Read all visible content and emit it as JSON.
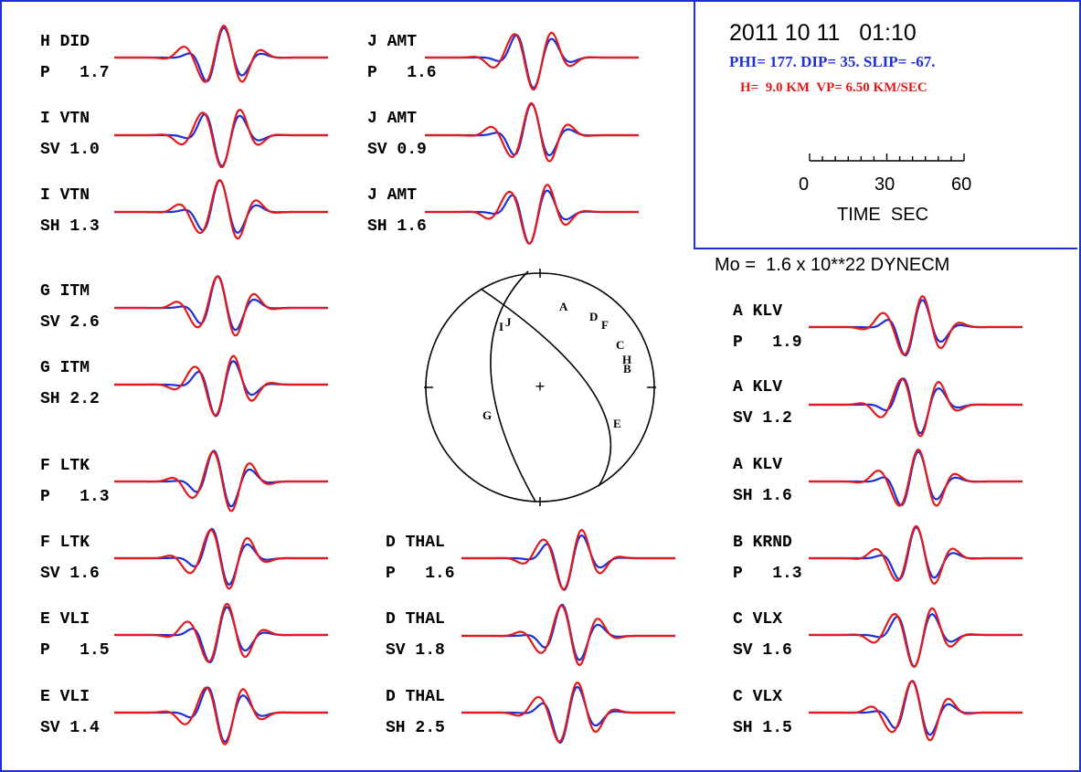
{
  "header": {
    "datetime": "2011 10 11   01:10",
    "mechanism": "PHI= 177. DIP= 35. SLIP= -67.",
    "depth_velocity": "H=  9.0 KM  VP= 6.50 KM/SEC",
    "scale_ticks": [
      "0",
      "30",
      "60"
    ],
    "scale_unit": "TIME  SEC",
    "moment": "Mo =  1.6 x 10**22 DYNECM"
  },
  "colors": {
    "observed": "#1f2fd8",
    "synthetic": "#e11b1b",
    "frame": "#1f2fd8",
    "text": "#000000"
  },
  "stations": [
    {
      "name": "H DID",
      "comp": "P   1.7",
      "amp": 1.7
    },
    {
      "name": "I VTN",
      "comp": "SV 1.0",
      "amp": 1.0
    },
    {
      "name": "I VTN",
      "comp": "SH 1.3",
      "amp": 1.3
    },
    {
      "name": "G ITM",
      "comp": "SV 2.6",
      "amp": 2.6
    },
    {
      "name": "G ITM",
      "comp": "SH 2.2",
      "amp": 2.2
    },
    {
      "name": "F LTK",
      "comp": "P   1.3",
      "amp": 1.3
    },
    {
      "name": "F LTK",
      "comp": "SV 1.6",
      "amp": 1.6
    },
    {
      "name": "E VLI",
      "comp": "P   1.5",
      "amp": 1.5
    },
    {
      "name": "E VLI",
      "comp": "SV 1.4",
      "amp": 1.4
    },
    {
      "name": "J AMT",
      "comp": "P   1.6",
      "amp": 1.6
    },
    {
      "name": "J AMT",
      "comp": "SV 0.9",
      "amp": 0.9
    },
    {
      "name": "J AMT",
      "comp": "SH 1.6",
      "amp": 1.6
    },
    {
      "name": "D THAL",
      "comp": "P   1.6",
      "amp": 1.6
    },
    {
      "name": "D THAL",
      "comp": "SV 1.8",
      "amp": 1.8
    },
    {
      "name": "D THAL",
      "comp": "SH 2.5",
      "amp": 2.5
    },
    {
      "name": "A KLV",
      "comp": "P   1.9",
      "amp": 1.9
    },
    {
      "name": "A KLV",
      "comp": "SV 1.2",
      "amp": 1.2
    },
    {
      "name": "A KLV",
      "comp": "SH 1.6",
      "amp": 1.6
    },
    {
      "name": "B KRND",
      "comp": "P   1.3",
      "amp": 1.3
    },
    {
      "name": "C VLX",
      "comp": "SV 1.6",
      "amp": 1.6
    },
    {
      "name": "C VLX",
      "comp": "SH 1.5",
      "amp": 1.5
    }
  ],
  "beachball": {
    "center_mark": "+",
    "station_letters": [
      "A",
      "B",
      "C",
      "D",
      "E",
      "F",
      "G",
      "H",
      "I",
      "J"
    ]
  }
}
